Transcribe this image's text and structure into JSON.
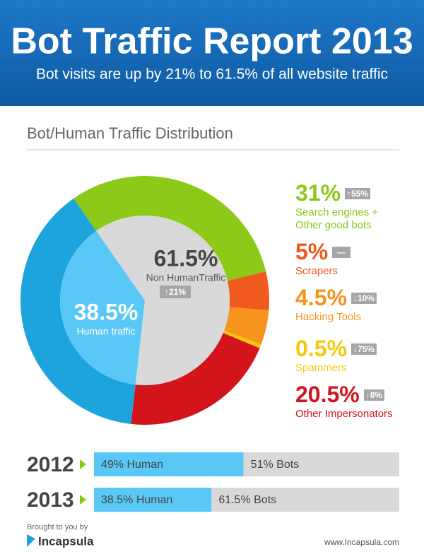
{
  "header": {
    "title": "Bot Traffic Report 2013",
    "subtitle": "Bot visits are up by 21% to 61.5% of all website traffic"
  },
  "section_title": "Bot/Human Traffic Distribution",
  "chart_data": [
    {
      "type": "pie",
      "categories": [
        "Search engines + Other good bots",
        "Scrapers",
        "Hacking Tools",
        "Spammers",
        "Other Impersonators",
        "Human traffic"
      ],
      "values": [
        31,
        5,
        4.5,
        0.5,
        20.5,
        38.5
      ],
      "value_labels": [
        "31%",
        "5%",
        "4.5%",
        "0.5%",
        "20.5%",
        "38.5%"
      ],
      "changes": [
        "↑55%",
        "—",
        "↓10%",
        "↓75%",
        "↑8%"
      ],
      "colors": [
        "#8cc919",
        "#f05a1e",
        "#f7941d",
        "#f7c90e",
        "#d4141b",
        "#1ea4dc"
      ],
      "inner": {
        "categories": [
          "Non HumanTraffic",
          "Human traffic"
        ],
        "values": [
          61.5,
          38.5
        ],
        "value_labels": [
          "61.5%",
          "38.5%"
        ],
        "change": "↑21%",
        "colors": [
          "#d9d9d9",
          "#5ac8f6"
        ]
      }
    },
    {
      "type": "bar",
      "categories": [
        "2012",
        "2013"
      ],
      "xlim": [
        0,
        100
      ],
      "series": [
        {
          "color": "#5ac8f6",
          "values": [
            49,
            38.5
          ],
          "value_labels": [
            "49% Human",
            "38.5% Human"
          ]
        },
        {
          "color": "#d9d9d9",
          "values": [
            51,
            61.5
          ],
          "value_labels": [
            "51% Bots",
            "61.5% Bots"
          ]
        }
      ]
    }
  ],
  "footer": {
    "credit": "Brought to you by",
    "brand": "Incapsula",
    "url": "www.Incapsula.com"
  }
}
